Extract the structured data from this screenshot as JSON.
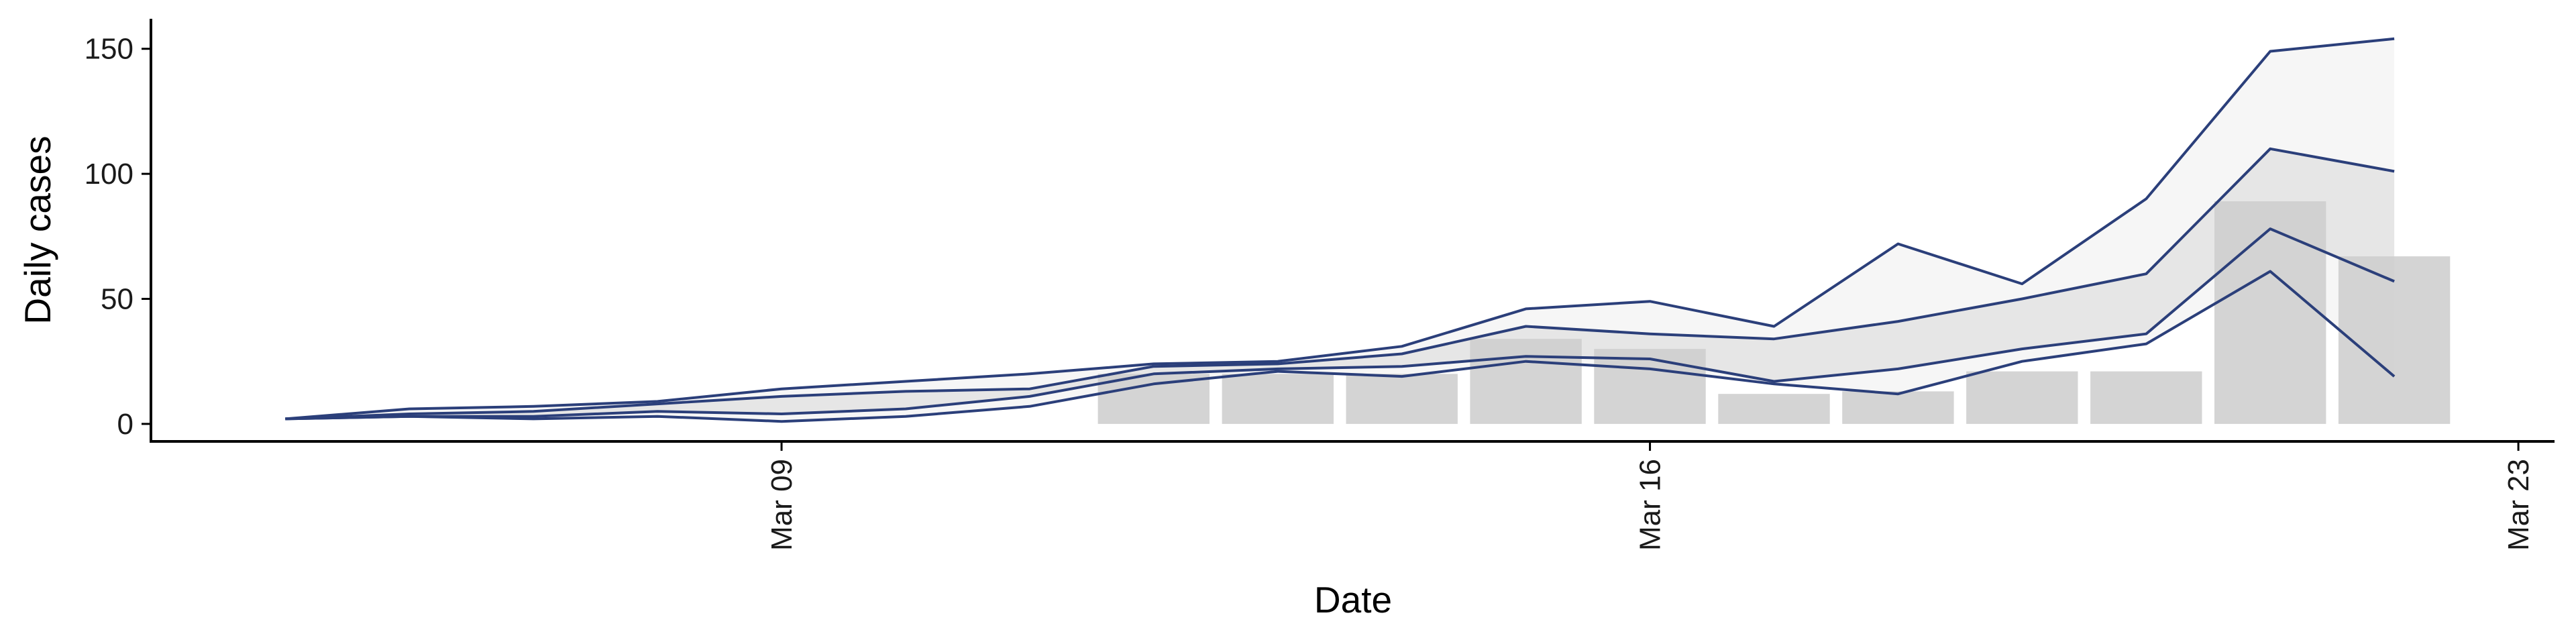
{
  "chart_data": {
    "type": "line",
    "title": "",
    "xlabel": "Date",
    "ylabel": "Daily cases",
    "x_tick_labels": [
      "Mar 09",
      "Mar 16",
      "Mar 23"
    ],
    "y_tick_labels": [
      "0",
      "50",
      "100",
      "150"
    ],
    "y_ticks": [
      0,
      50,
      100,
      150
    ],
    "ylim": [
      -7,
      162
    ],
    "x_range": [
      "2020-03-03T22:00",
      "2020-03-23T07:00"
    ],
    "x_tick_dates": [
      "2020-03-09",
      "2020-03-16",
      "2020-03-23"
    ],
    "grid": false,
    "legend": "none",
    "bars": {
      "dates": [
        "2020-03-12",
        "2020-03-13",
        "2020-03-14",
        "2020-03-15",
        "2020-03-16",
        "2020-03-17",
        "2020-03-18",
        "2020-03-19",
        "2020-03-20",
        "2020-03-21",
        "2020-03-22"
      ],
      "values": [
        20,
        20,
        20,
        34,
        30,
        12,
        13,
        21,
        21,
        89,
        67
      ]
    },
    "lines": {
      "dates": [
        "2020-03-05",
        "2020-03-06",
        "2020-03-07",
        "2020-03-08",
        "2020-03-09",
        "2020-03-10",
        "2020-03-11",
        "2020-03-12",
        "2020-03-13",
        "2020-03-14",
        "2020-03-15",
        "2020-03-16",
        "2020-03-17",
        "2020-03-18",
        "2020-03-19",
        "2020-03-20",
        "2020-03-21",
        "2020-03-22"
      ],
      "upper_outer": [
        2,
        6,
        7,
        9,
        14,
        17,
        20,
        24,
        25,
        31,
        46,
        49,
        39,
        72,
        56,
        90,
        149,
        154
      ],
      "upper_inner": [
        2,
        4,
        5,
        8,
        11,
        13,
        14,
        23,
        24,
        28,
        39,
        36,
        34,
        41,
        50,
        60,
        110,
        101
      ],
      "lower_inner": [
        2,
        3,
        3,
        5,
        4,
        6,
        11,
        20,
        22,
        23,
        27,
        26,
        17,
        22,
        30,
        36,
        78,
        57
      ],
      "lower_outer": [
        2,
        3,
        2,
        3,
        1,
        3,
        7,
        16,
        21,
        19,
        25,
        22,
        16,
        12,
        25,
        32,
        61,
        19
      ]
    },
    "colors": {
      "bar": "#cccccc",
      "line": "#2b3f7a",
      "band_outer": "#f6f6f6",
      "band_inner": "#e6e6e6",
      "axis": "#000000"
    }
  }
}
